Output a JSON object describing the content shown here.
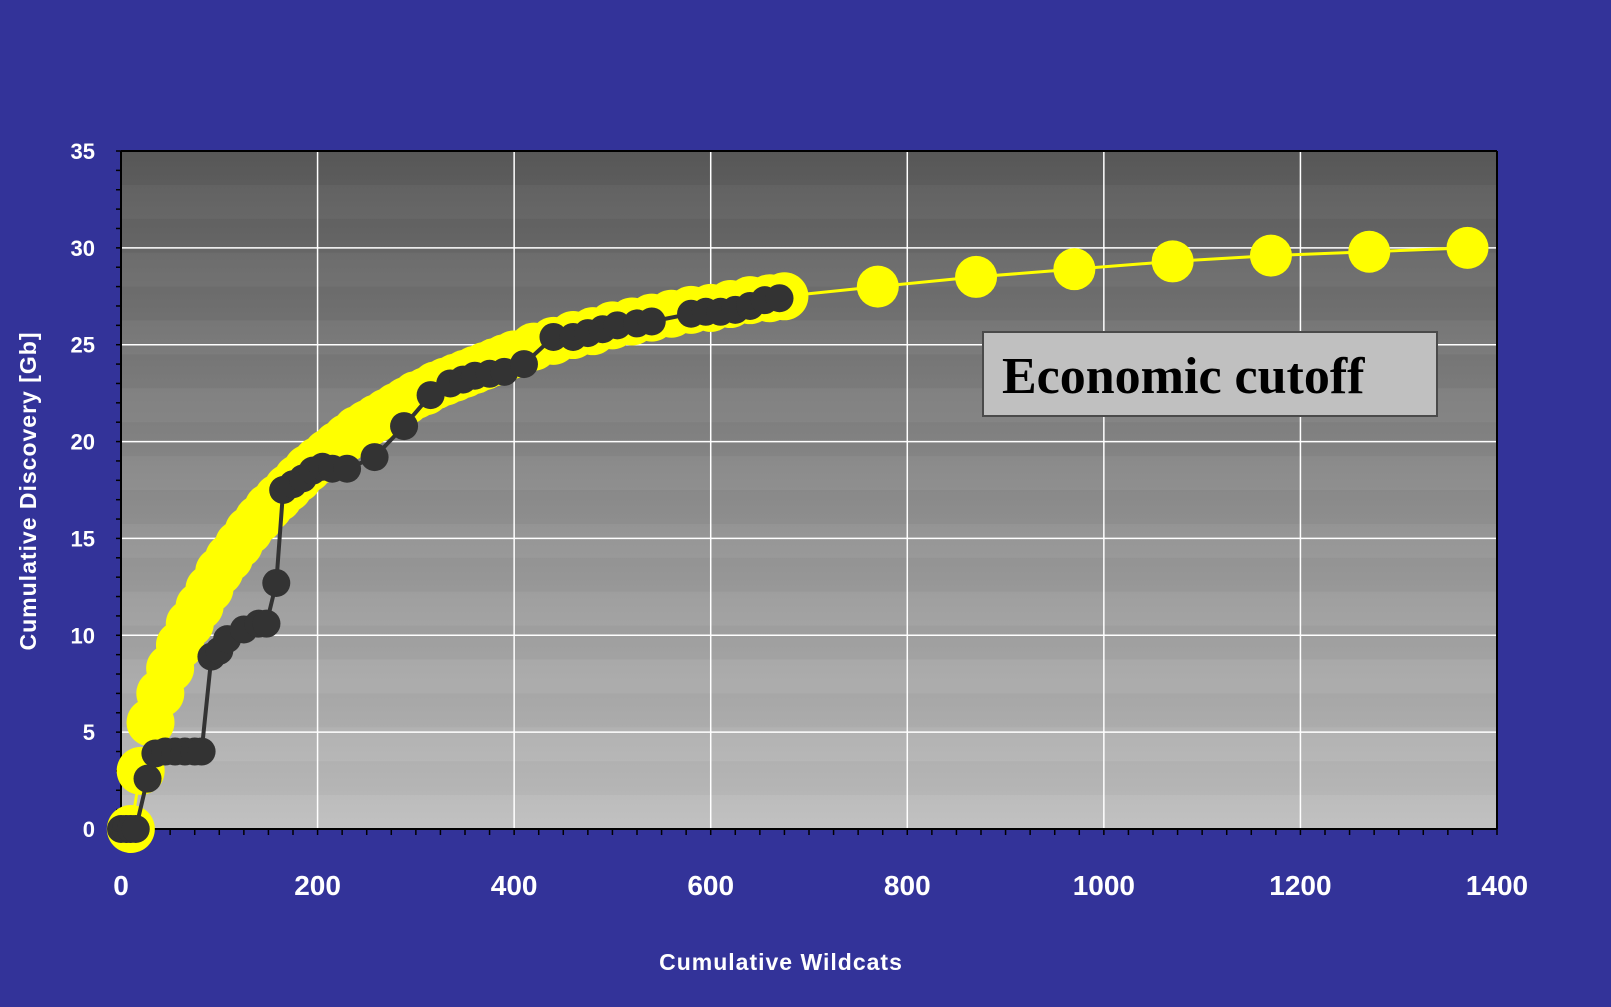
{
  "chart_data": {
    "type": "scatter",
    "title": "",
    "xlabel": "Cumulative Wildcats",
    "ylabel": "Cumulative Discovery [Gb]",
    "xlim": [
      0,
      1400
    ],
    "ylim": [
      0,
      35
    ],
    "x_ticks": [
      "0",
      "200",
      "400",
      "600",
      "800",
      "1000",
      "1200",
      "1400"
    ],
    "y_ticks": [
      "0",
      "5",
      "10",
      "15",
      "20",
      "25",
      "30",
      "35"
    ],
    "grid": true,
    "legend": "none",
    "colors": {
      "background": "#333399",
      "plot_top": "#5a5a5a",
      "plot_bottom": "#c0c0c0",
      "fit_series": "#ffff00",
      "actual_series": "#333333",
      "grid": "#ffffff",
      "annotation_box": "#c0c0c0"
    },
    "annotation": "Economic cutoff",
    "series": [
      {
        "name": "",
        "role": "fitted-curve",
        "points": [
          [
            10,
            0
          ],
          [
            20,
            3
          ],
          [
            30,
            5.5
          ],
          [
            40,
            7
          ],
          [
            50,
            8.3
          ],
          [
            60,
            9.5
          ],
          [
            70,
            10.6
          ],
          [
            80,
            11.5
          ],
          [
            90,
            12.4
          ],
          [
            100,
            13.3
          ],
          [
            110,
            14
          ],
          [
            120,
            14.7
          ],
          [
            130,
            15.4
          ],
          [
            140,
            16
          ],
          [
            150,
            16.6
          ],
          [
            160,
            17.1
          ],
          [
            170,
            17.6
          ],
          [
            180,
            18.1
          ],
          [
            190,
            18.6
          ],
          [
            200,
            19
          ],
          [
            210,
            19.4
          ],
          [
            220,
            19.8
          ],
          [
            230,
            20.2
          ],
          [
            240,
            20.6
          ],
          [
            250,
            20.9
          ],
          [
            260,
            21.2
          ],
          [
            270,
            21.5
          ],
          [
            280,
            21.8
          ],
          [
            290,
            22.1
          ],
          [
            300,
            22.4
          ],
          [
            310,
            22.6
          ],
          [
            320,
            22.9
          ],
          [
            330,
            23.1
          ],
          [
            340,
            23.3
          ],
          [
            350,
            23.5
          ],
          [
            360,
            23.7
          ],
          [
            370,
            23.9
          ],
          [
            380,
            24.1
          ],
          [
            390,
            24.3
          ],
          [
            400,
            24.5
          ],
          [
            420,
            24.9
          ],
          [
            440,
            25.2
          ],
          [
            460,
            25.5
          ],
          [
            480,
            25.7
          ],
          [
            500,
            26
          ],
          [
            520,
            26.2
          ],
          [
            540,
            26.4
          ],
          [
            560,
            26.6
          ],
          [
            580,
            26.8
          ],
          [
            600,
            26.9
          ],
          [
            620,
            27.1
          ],
          [
            640,
            27.3
          ],
          [
            660,
            27.4
          ],
          [
            675,
            27.5
          ],
          [
            770,
            28
          ],
          [
            870,
            28.5
          ],
          [
            970,
            28.9
          ],
          [
            1070,
            29.3
          ],
          [
            1170,
            29.6
          ],
          [
            1270,
            29.8
          ],
          [
            1370,
            30
          ]
        ]
      },
      {
        "name": "",
        "role": "actual-discoveries",
        "points": [
          [
            0,
            0
          ],
          [
            5,
            0
          ],
          [
            10,
            0
          ],
          [
            15,
            0
          ],
          [
            27,
            2.6
          ],
          [
            35,
            3.9
          ],
          [
            45,
            4
          ],
          [
            55,
            4
          ],
          [
            65,
            4
          ],
          [
            75,
            4
          ],
          [
            82,
            4
          ],
          [
            92,
            8.9
          ],
          [
            100,
            9.2
          ],
          [
            108,
            9.8
          ],
          [
            125,
            10.3
          ],
          [
            140,
            10.6
          ],
          [
            148,
            10.6
          ],
          [
            158,
            12.7
          ],
          [
            165,
            17.5
          ],
          [
            175,
            17.8
          ],
          [
            185,
            18.1
          ],
          [
            195,
            18.5
          ],
          [
            205,
            18.7
          ],
          [
            215,
            18.6
          ],
          [
            230,
            18.6
          ],
          [
            258,
            19.2
          ],
          [
            288,
            20.8
          ],
          [
            315,
            22.4
          ],
          [
            335,
            23
          ],
          [
            348,
            23.2
          ],
          [
            360,
            23.4
          ],
          [
            375,
            23.5
          ],
          [
            390,
            23.6
          ],
          [
            410,
            24
          ],
          [
            440,
            25.4
          ],
          [
            460,
            25.4
          ],
          [
            475,
            25.6
          ],
          [
            490,
            25.8
          ],
          [
            505,
            26
          ],
          [
            525,
            26.1
          ],
          [
            540,
            26.2
          ],
          [
            580,
            26.6
          ],
          [
            595,
            26.7
          ],
          [
            610,
            26.7
          ],
          [
            625,
            26.8
          ],
          [
            640,
            27
          ],
          [
            655,
            27.3
          ],
          [
            670,
            27.4
          ]
        ]
      }
    ]
  }
}
